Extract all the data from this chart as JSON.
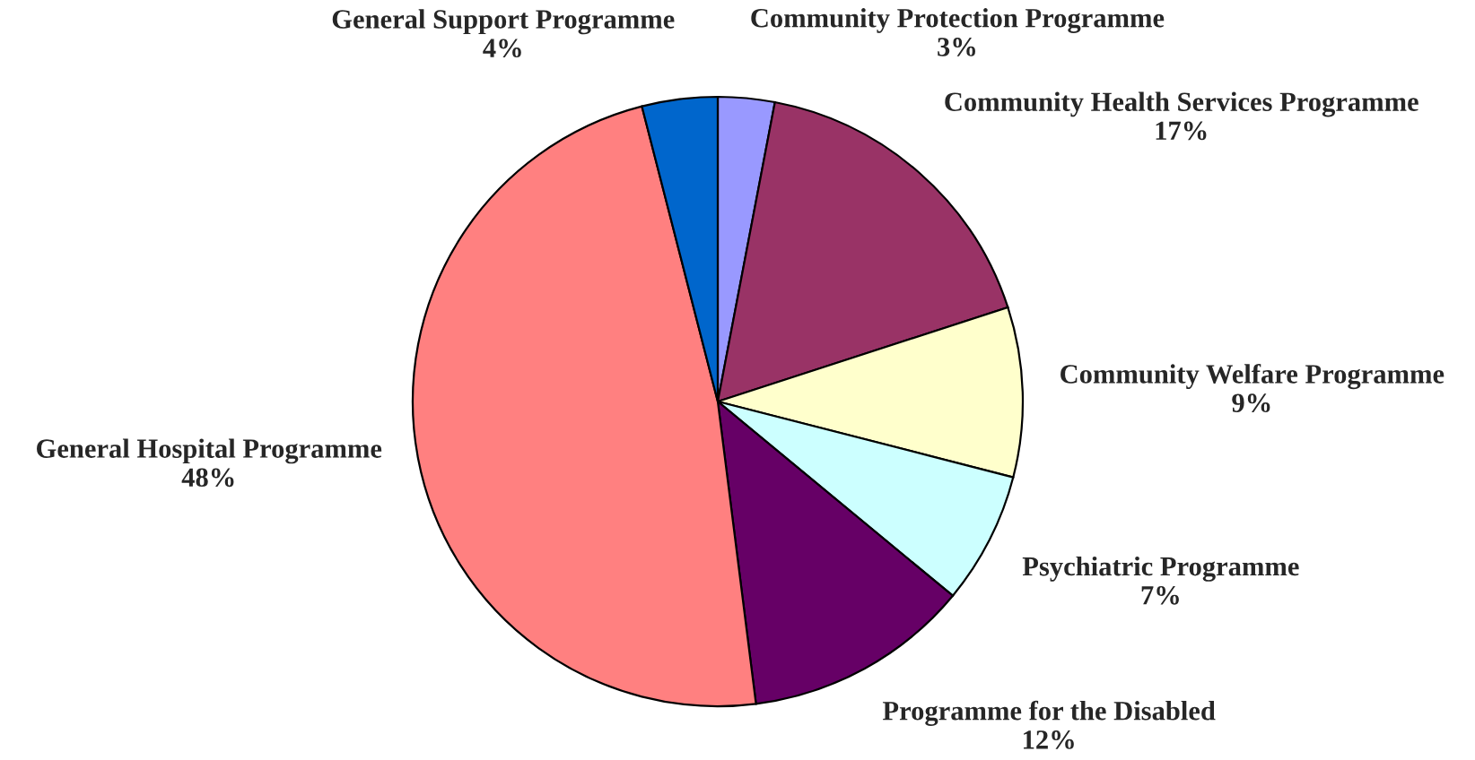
{
  "chart_data": {
    "type": "pie",
    "categories": [
      "Community Protection Programme",
      "Community Health Services Programme",
      "Community Welfare Programme",
      "Psychiatric Programme",
      "Programme for the Disabled",
      "General Hospital Programme",
      "General Support Programme"
    ],
    "values": [
      3,
      17,
      9,
      7,
      12,
      48,
      4
    ],
    "value_labels": [
      "3%",
      "17%",
      "9%",
      "7%",
      "12%",
      "48%",
      "4%"
    ],
    "colors": [
      "#9999ff",
      "#993366",
      "#ffffcc",
      "#ccffff",
      "#660066",
      "#ff8080",
      "#0066cc"
    ],
    "legend": false
  }
}
